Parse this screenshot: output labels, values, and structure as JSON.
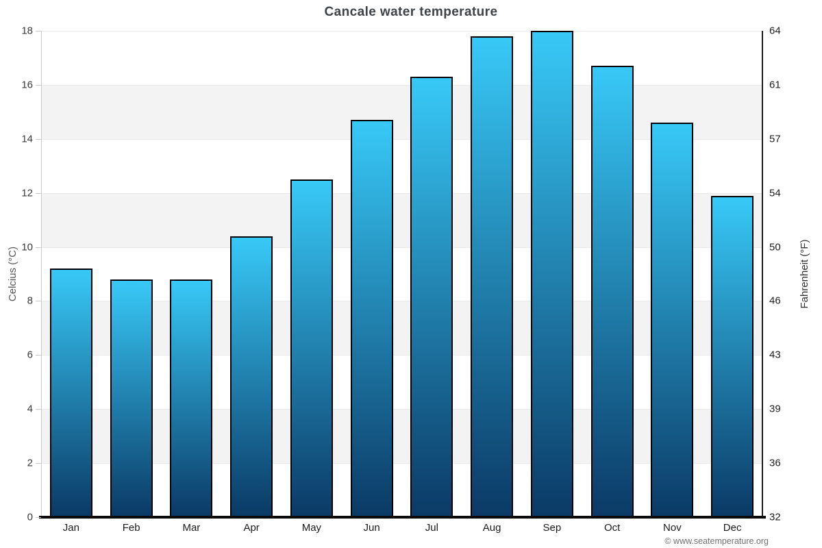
{
  "title": "Cancale water temperature",
  "left_axis": {
    "label": "Celcius (°C)"
  },
  "right_axis": {
    "label": "Fahrenheit (°F)"
  },
  "footer": {
    "copyright": "© www.seatemperature.org"
  },
  "colors": {
    "bar_gradient_top": "#38c9f7",
    "bar_gradient_bottom": "#0b3a66",
    "bar_border": "#000000",
    "band_gray": "#f3f3f3",
    "gridline": "#e9e9e9",
    "left_axis_line": "#c8c8c8",
    "right_axis_line": "#1a1a1a",
    "bottom_axis_line": "#0a0a0a"
  },
  "chart_data": {
    "type": "bar",
    "title": "Cancale water temperature",
    "categories": [
      "Jan",
      "Feb",
      "Mar",
      "Apr",
      "May",
      "Jun",
      "Jul",
      "Aug",
      "Sep",
      "Oct",
      "Nov",
      "Dec"
    ],
    "values": [
      9.2,
      8.8,
      8.8,
      10.4,
      12.5,
      14.7,
      16.3,
      17.8,
      18.0,
      16.7,
      14.6,
      11.9
    ],
    "ylabel_left": "Celcius (°C)",
    "ylabel_right": "Fahrenheit (°F)",
    "ylim": [
      0,
      18
    ],
    "yticks_celsius": [
      0,
      2,
      4,
      6,
      8,
      10,
      12,
      14,
      16,
      18
    ],
    "yticks_fahrenheit": [
      32,
      36,
      39,
      43,
      46,
      50,
      54,
      57,
      61,
      64
    ],
    "legend": "none",
    "grid": "alternating horizontal gray bands between celsius ticks"
  }
}
